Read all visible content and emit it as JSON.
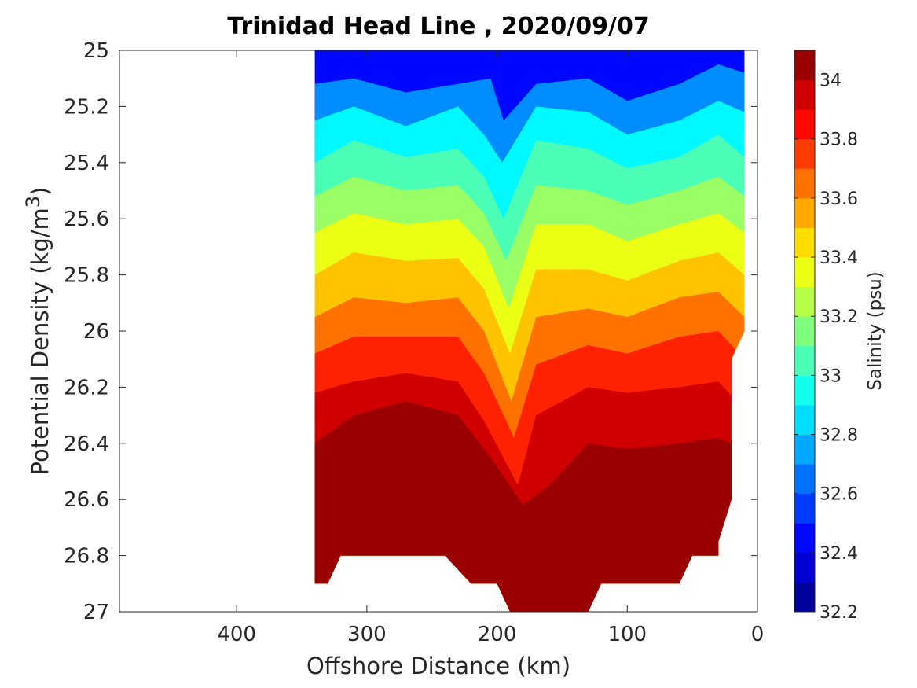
{
  "chart_data": {
    "type": "contourf",
    "title": "Trinidad Head Line , 2020/09/07",
    "xlabel": "Offshore Distance (km)",
    "ylabel_main": "Potential Density (kg/m",
    "ylabel_sup": "3",
    "ylabel_end": ")",
    "colorbar_label": "Salinity (psu)",
    "xlim": [
      490,
      0
    ],
    "x_reversed": true,
    "ylim": [
      25,
      27
    ],
    "y_reversed": true,
    "xticks": [
      400,
      300,
      200,
      100,
      0
    ],
    "xtick_labels": [
      "400",
      "300",
      "200",
      "100",
      "0"
    ],
    "yticks": [
      25,
      25.2,
      25.4,
      25.6,
      25.8,
      26,
      26.2,
      26.4,
      26.6,
      26.8,
      27
    ],
    "ytick_labels": [
      "25",
      "25.2",
      "25.4",
      "25.6",
      "25.8",
      "26",
      "26.2",
      "26.4",
      "26.6",
      "26.8",
      "27"
    ],
    "colorbar_range": [
      32.2,
      34.1
    ],
    "colorbar_ticks": [
      32.2,
      32.4,
      32.6,
      32.8,
      33,
      33.2,
      33.4,
      33.6,
      33.8,
      34
    ],
    "colorbar_tick_labels": [
      "32.2",
      "32.4",
      "32.6",
      "32.8",
      "33",
      "33.2",
      "33.4",
      "33.6",
      "33.8",
      "34"
    ],
    "colormap": "jet",
    "data_extent_km": [
      340,
      10
    ],
    "salinity_bands": [
      {
        "upper_km": [
          340,
          310,
          270,
          230,
          205,
          195,
          170,
          130,
          100,
          60,
          30,
          10
        ],
        "upper_sigma": [
          25.12,
          25.1,
          25.15,
          25.12,
          25.1,
          25.25,
          25.12,
          25.1,
          25.18,
          25.12,
          25.05,
          25.08
        ],
        "salinity": 32.7
      },
      {
        "upper_km": [
          340,
          310,
          270,
          230,
          210,
          196,
          170,
          130,
          100,
          60,
          30,
          10
        ],
        "upper_sigma": [
          25.25,
          25.2,
          25.27,
          25.2,
          25.3,
          25.4,
          25.2,
          25.22,
          25.3,
          25.25,
          25.18,
          25.22
        ],
        "salinity": 32.9
      },
      {
        "upper_km": [
          340,
          310,
          270,
          230,
          210,
          195,
          170,
          130,
          100,
          60,
          30,
          10
        ],
        "upper_sigma": [
          25.4,
          25.32,
          25.38,
          25.35,
          25.45,
          25.6,
          25.32,
          25.35,
          25.42,
          25.38,
          25.3,
          25.38
        ],
        "salinity": 33.05
      },
      {
        "upper_km": [
          340,
          310,
          270,
          230,
          210,
          193,
          170,
          130,
          100,
          60,
          30,
          10
        ],
        "upper_sigma": [
          25.52,
          25.45,
          25.5,
          25.48,
          25.58,
          25.75,
          25.48,
          25.5,
          25.55,
          25.5,
          25.45,
          25.52
        ],
        "salinity": 33.2
      },
      {
        "upper_km": [
          340,
          310,
          270,
          230,
          210,
          191,
          170,
          130,
          100,
          60,
          30,
          10
        ],
        "upper_sigma": [
          25.65,
          25.58,
          25.62,
          25.6,
          25.7,
          25.92,
          25.62,
          25.62,
          25.68,
          25.62,
          25.58,
          25.65
        ],
        "salinity": 33.35
      },
      {
        "upper_km": [
          340,
          310,
          270,
          230,
          210,
          190,
          170,
          130,
          100,
          60,
          30,
          10
        ],
        "upper_sigma": [
          25.8,
          25.72,
          25.75,
          25.74,
          25.85,
          26.08,
          25.78,
          25.78,
          25.82,
          25.75,
          25.72,
          25.8
        ],
        "salinity": 33.5
      },
      {
        "upper_km": [
          340,
          310,
          270,
          230,
          210,
          189,
          170,
          130,
          100,
          60,
          30,
          10
        ],
        "upper_sigma": [
          25.95,
          25.88,
          25.9,
          25.88,
          26.0,
          26.25,
          25.95,
          25.92,
          25.95,
          25.88,
          25.86,
          25.95
        ],
        "salinity": 33.65
      },
      {
        "upper_km": [
          340,
          310,
          270,
          230,
          210,
          187,
          170,
          130,
          100,
          60,
          30,
          10
        ],
        "upper_sigma": [
          26.08,
          26.02,
          26.02,
          26.02,
          26.15,
          26.38,
          26.12,
          26.05,
          26.08,
          26.02,
          26.0,
          26.1
        ],
        "salinity": 33.8
      },
      {
        "upper_km": [
          340,
          310,
          270,
          230,
          210,
          184,
          170,
          130,
          100,
          60,
          30,
          10
        ],
        "upper_sigma": [
          26.22,
          26.18,
          26.15,
          26.18,
          26.32,
          26.55,
          26.3,
          26.2,
          26.22,
          26.2,
          26.18,
          26.28
        ],
        "salinity": 33.95
      },
      {
        "upper_km": [
          340,
          310,
          270,
          230,
          205,
          180,
          160,
          130,
          100,
          60,
          30,
          10
        ],
        "upper_sigma": [
          26.4,
          26.3,
          26.25,
          26.3,
          26.45,
          26.62,
          26.55,
          26.4,
          26.42,
          26.4,
          26.38,
          26.42
        ],
        "salinity": 34.05
      }
    ]
  }
}
